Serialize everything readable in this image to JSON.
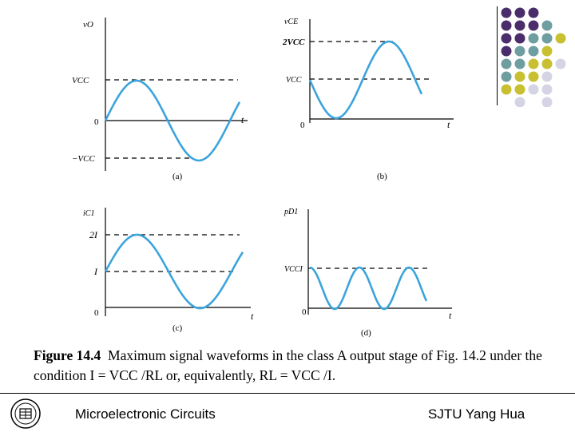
{
  "caption": {
    "label": "Figure 14.4",
    "text": "Maximum signal waveforms in the class A output stage of Fig. 14.2 under the condition I = VCC /RL or, equivalently, RL = VCC /I."
  },
  "footer": {
    "left": "Microelectronic Circuits",
    "right": "SJTU  Yang Hua",
    "background": "#ffffff"
  },
  "plots": [
    {
      "id": "a",
      "sublabel": "(a)",
      "ylabel": "vO",
      "xlabel": "t",
      "ticks": [
        "VCC",
        "0",
        "−VCC"
      ]
    },
    {
      "id": "b",
      "sublabel": "(b)",
      "ylabel": "vCE",
      "xlabel": "t",
      "ticks": [
        "2VCC",
        "VCC",
        "0"
      ]
    },
    {
      "id": "c",
      "sublabel": "(c)",
      "ylabel": "iC1",
      "xlabel": "t",
      "ticks": [
        "2I",
        "I",
        "0"
      ]
    },
    {
      "id": "d",
      "sublabel": "(d)",
      "ylabel": "pD1",
      "xlabel": "t",
      "ticks": [
        "VCCI",
        "0"
      ]
    }
  ],
  "colors": {
    "wave": "#3ca4dc",
    "dot_purple": "#4b2d6b",
    "dot_teal": "#6f9ea0",
    "dot_yellow": "#c8c030",
    "dot_lavender": "#d4d4e4"
  }
}
